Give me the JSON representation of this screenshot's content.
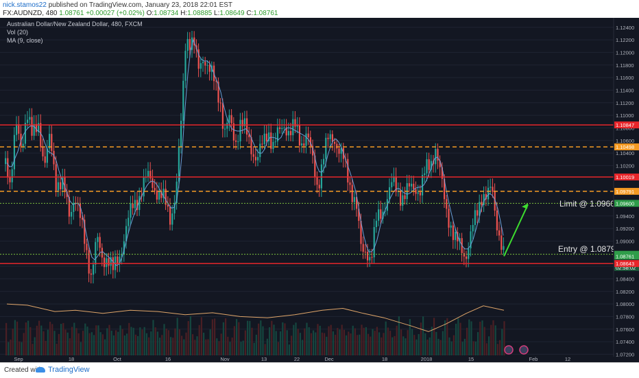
{
  "header": {
    "author": "nick.stamos22",
    "published": "published on TradingView.com, January 23, 2018 22:01 EST",
    "symbol": "FX:AUDNZD, 480",
    "last": "1.08761",
    "change": "+0.00027 (+0.02%)",
    "o_label": "O:",
    "o_value": "1.08734",
    "h_label": "H:",
    "h_value": "1.08885",
    "l_label": "L:",
    "l_value": "1.08649",
    "c_label": "C:",
    "c_value": "1.08761"
  },
  "chart": {
    "title": "Australian Dollar/New Zealand Dollar, 480, FXCM",
    "vol": "Vol (20)",
    "ma": "MA (9, close)",
    "limit_label": "Limit @ 1.09600",
    "entry_label": "Entry @ 1.08790",
    "colors": {
      "bg": "#131722",
      "up": "#26a69a",
      "down": "#ef5350",
      "red_line": "#e8262b",
      "orange_line": "#f59a23",
      "green_dotted": "#7ec13f",
      "arrow": "#3ddc2f",
      "ma": "#6a9fd8",
      "vol_ma": "#e0a66a"
    }
  },
  "chart_data": {
    "type": "candlestick",
    "y_ticks": [
      "1.12400",
      "1.12200",
      "1.12000",
      "1.11800",
      "1.11600",
      "1.11400",
      "1.11200",
      "1.11000",
      "1.10800",
      "1.10600",
      "1.10400",
      "1.10200",
      "1.09800",
      "1.09400",
      "1.09200",
      "1.09000",
      "1.08600",
      "1.08400",
      "1.08200",
      "1.08000",
      "1.07800",
      "1.07600",
      "1.07400",
      "1.07200"
    ],
    "x_ticks": [
      "Sep",
      "18",
      "Oct",
      "16",
      "Nov",
      "13",
      "22",
      "Dec",
      "18",
      "2018",
      "15",
      "Feb",
      "12"
    ],
    "ylim": [
      1.0715,
      1.1255
    ],
    "price_labels": [
      {
        "text": "1.10847",
        "kind": "red",
        "price": 1.10847
      },
      {
        "text": "1.10498",
        "kind": "orange",
        "price": 1.10498
      },
      {
        "text": "1.10019",
        "kind": "red",
        "price": 1.10019
      },
      {
        "text": "1.09791",
        "kind": "orange",
        "price": 1.09791
      },
      {
        "text": "1.09600",
        "kind": "green",
        "price": 1.096
      },
      {
        "text": "1.08790",
        "kind": "green",
        "price": 1.0879
      },
      {
        "text": "1.08761",
        "kind": "green",
        "price": 1.08761
      },
      {
        "text": "02:58:02",
        "kind": "countdown",
        "price": 1.0858
      },
      {
        "text": "1.08643",
        "kind": "red",
        "price": 1.08643
      }
    ],
    "horizontal_lines": [
      {
        "price": 1.10847,
        "kind": "red"
      },
      {
        "price": 1.10498,
        "kind": "orange-dashed"
      },
      {
        "price": 1.10019,
        "kind": "red"
      },
      {
        "price": 1.09791,
        "kind": "orange-dashed"
      },
      {
        "price": 1.096,
        "kind": "green-dotted"
      },
      {
        "price": 1.0879,
        "kind": "green-dotted"
      },
      {
        "price": 1.08643,
        "kind": "red"
      }
    ],
    "price_path": [
      [
        0,
        1.097
      ],
      [
        8,
        1.104
      ],
      [
        14,
        1.099
      ],
      [
        22,
        1.108
      ],
      [
        30,
        1.105
      ],
      [
        38,
        1.111
      ],
      [
        46,
        1.106
      ],
      [
        55,
        1.109
      ],
      [
        64,
        1.102
      ],
      [
        72,
        1.106
      ],
      [
        80,
        1.1
      ],
      [
        90,
        1.099
      ],
      [
        100,
        1.094
      ],
      [
        108,
        1.098
      ],
      [
        118,
        1.092
      ],
      [
        126,
        1.088
      ],
      [
        132,
        1.085
      ],
      [
        140,
        1.09
      ],
      [
        148,
        1.087
      ],
      [
        156,
        1.088
      ],
      [
        164,
        1.085
      ],
      [
        172,
        1.087
      ],
      [
        182,
        1.092
      ],
      [
        192,
        1.095
      ],
      [
        200,
        1.097
      ],
      [
        208,
        1.099
      ],
      [
        216,
        1.1
      ],
      [
        224,
        1.099
      ],
      [
        232,
        1.097
      ],
      [
        240,
        1.096
      ],
      [
        248,
        1.094
      ],
      [
        256,
        1.098
      ],
      [
        264,
        1.11
      ],
      [
        270,
        1.123
      ],
      [
        276,
        1.122
      ],
      [
        282,
        1.121
      ],
      [
        288,
        1.117
      ],
      [
        296,
        1.12
      ],
      [
        304,
        1.117
      ],
      [
        312,
        1.115
      ],
      [
        320,
        1.113
      ],
      [
        326,
        1.107
      ],
      [
        334,
        1.109
      ],
      [
        342,
        1.106
      ],
      [
        350,
        1.109
      ],
      [
        358,
        1.107
      ],
      [
        366,
        1.105
      ],
      [
        374,
        1.103
      ],
      [
        382,
        1.105
      ],
      [
        390,
        1.108
      ],
      [
        398,
        1.105
      ],
      [
        406,
        1.107
      ],
      [
        414,
        1.109
      ],
      [
        422,
        1.107
      ],
      [
        430,
        1.108
      ],
      [
        438,
        1.106
      ],
      [
        446,
        1.107
      ],
      [
        454,
        1.103
      ],
      [
        462,
        1.099
      ],
      [
        470,
        1.103
      ],
      [
        478,
        1.106
      ],
      [
        486,
        1.107
      ],
      [
        494,
        1.104
      ],
      [
        502,
        1.102
      ],
      [
        510,
        1.099
      ],
      [
        518,
        1.096
      ],
      [
        526,
        1.088
      ],
      [
        534,
        1.089
      ],
      [
        540,
        1.087
      ],
      [
        548,
        1.093
      ],
      [
        556,
        1.095
      ],
      [
        564,
        1.097
      ],
      [
        572,
        1.099
      ],
      [
        580,
        1.098
      ],
      [
        588,
        1.097
      ],
      [
        596,
        1.098
      ],
      [
        604,
        1.099
      ],
      [
        612,
        1.098
      ],
      [
        620,
        1.101
      ],
      [
        628,
        1.103
      ],
      [
        634,
        1.105
      ],
      [
        640,
        1.101
      ],
      [
        648,
        1.096
      ],
      [
        656,
        1.093
      ],
      [
        662,
        1.09
      ],
      [
        670,
        1.089
      ],
      [
        678,
        1.088
      ],
      [
        686,
        1.091
      ],
      [
        694,
        1.094
      ],
      [
        702,
        1.098
      ],
      [
        710,
        1.097
      ],
      [
        716,
        1.098
      ],
      [
        722,
        1.094
      ],
      [
        728,
        1.091
      ],
      [
        734,
        1.0876
      ]
    ],
    "vol_ma_path": [
      [
        10,
        1.08
      ],
      [
        40,
        1.0798
      ],
      [
        80,
        1.0788
      ],
      [
        110,
        1.079
      ],
      [
        150,
        1.0785
      ],
      [
        190,
        1.079
      ],
      [
        230,
        1.0788
      ],
      [
        270,
        1.0783
      ],
      [
        310,
        1.0786
      ],
      [
        350,
        1.078
      ],
      [
        390,
        1.0778
      ],
      [
        430,
        1.0783
      ],
      [
        470,
        1.079
      ],
      [
        500,
        1.0793
      ],
      [
        530,
        1.0785
      ],
      [
        560,
        1.0778
      ],
      [
        600,
        1.0765
      ],
      [
        625,
        1.0756
      ],
      [
        650,
        1.0768
      ],
      [
        680,
        1.0785
      ],
      [
        705,
        1.0797
      ],
      [
        735,
        1.079
      ]
    ]
  },
  "footer": {
    "created": "Created with",
    "brand": "TradingView"
  }
}
